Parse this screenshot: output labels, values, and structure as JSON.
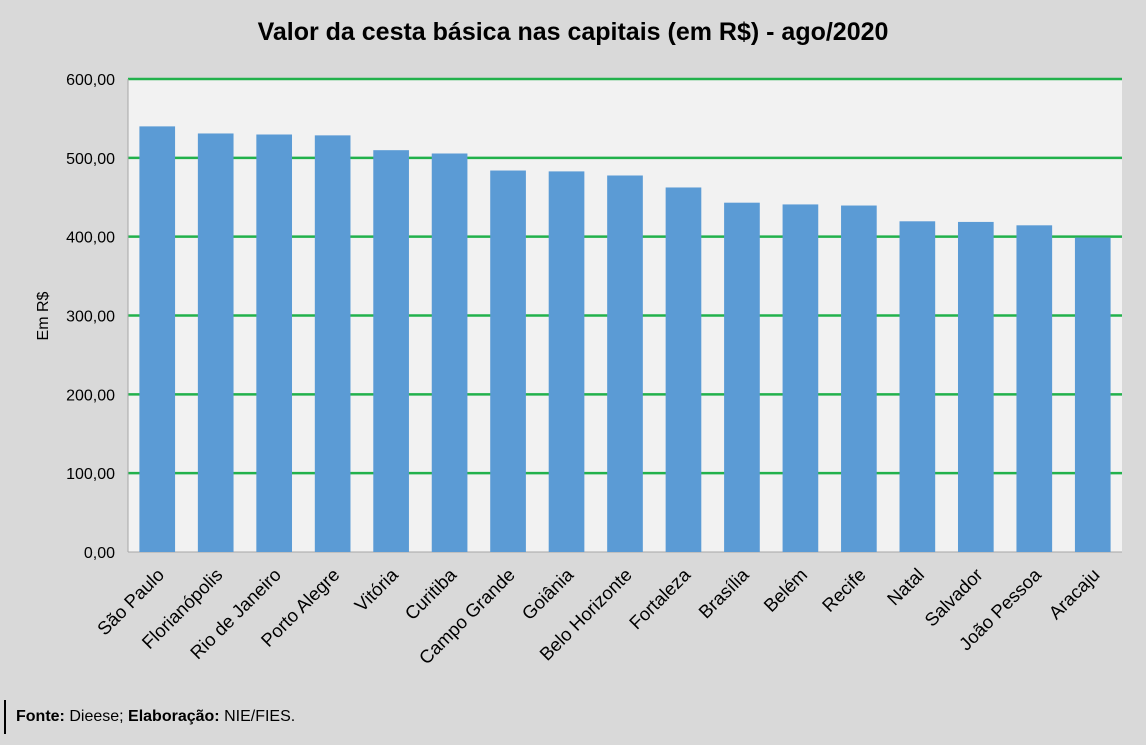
{
  "chart_data": {
    "type": "bar",
    "title": "Valor da cesta básica nas capitais (em R$) - ago/2020",
    "xlabel": "",
    "ylabel": "Em R$",
    "ylim": [
      0,
      600
    ],
    "yticks": [
      0,
      100,
      200,
      300,
      400,
      500,
      600
    ],
    "ytick_labels": [
      "0,00",
      "100,00",
      "200,00",
      "300,00",
      "400,00",
      "500,00",
      "600,00"
    ],
    "grid": true,
    "legend": "none",
    "categories": [
      "São Paulo",
      "Florianópolis",
      "Rio de Janeiro",
      "Porto Alegre",
      "Vitória",
      "Curitiba",
      "Campo Grande",
      "Goiânia",
      "Belo Horizonte",
      "Fortaleza",
      "Brasília",
      "Belém",
      "Recife",
      "Natal",
      "Salvador",
      "João Pessoa",
      "Aracaju"
    ],
    "values": [
      539.9,
      530.9,
      529.6,
      528.5,
      509.7,
      505.5,
      483.9,
      482.8,
      477.6,
      462.4,
      443.1,
      440.9,
      439.5,
      419.5,
      418.7,
      414.4,
      398.8
    ],
    "colors": {
      "bar": "#5b9bd5",
      "grid": "#22b14c",
      "plot_bg": "#f2f2f2",
      "page_bg": "#d9d9d9"
    }
  },
  "footer": {
    "source_label": "Fonte:",
    "source_value": "Dieese;",
    "credit_label": "Elaboração:",
    "credit_value": "NIE/FIES."
  }
}
